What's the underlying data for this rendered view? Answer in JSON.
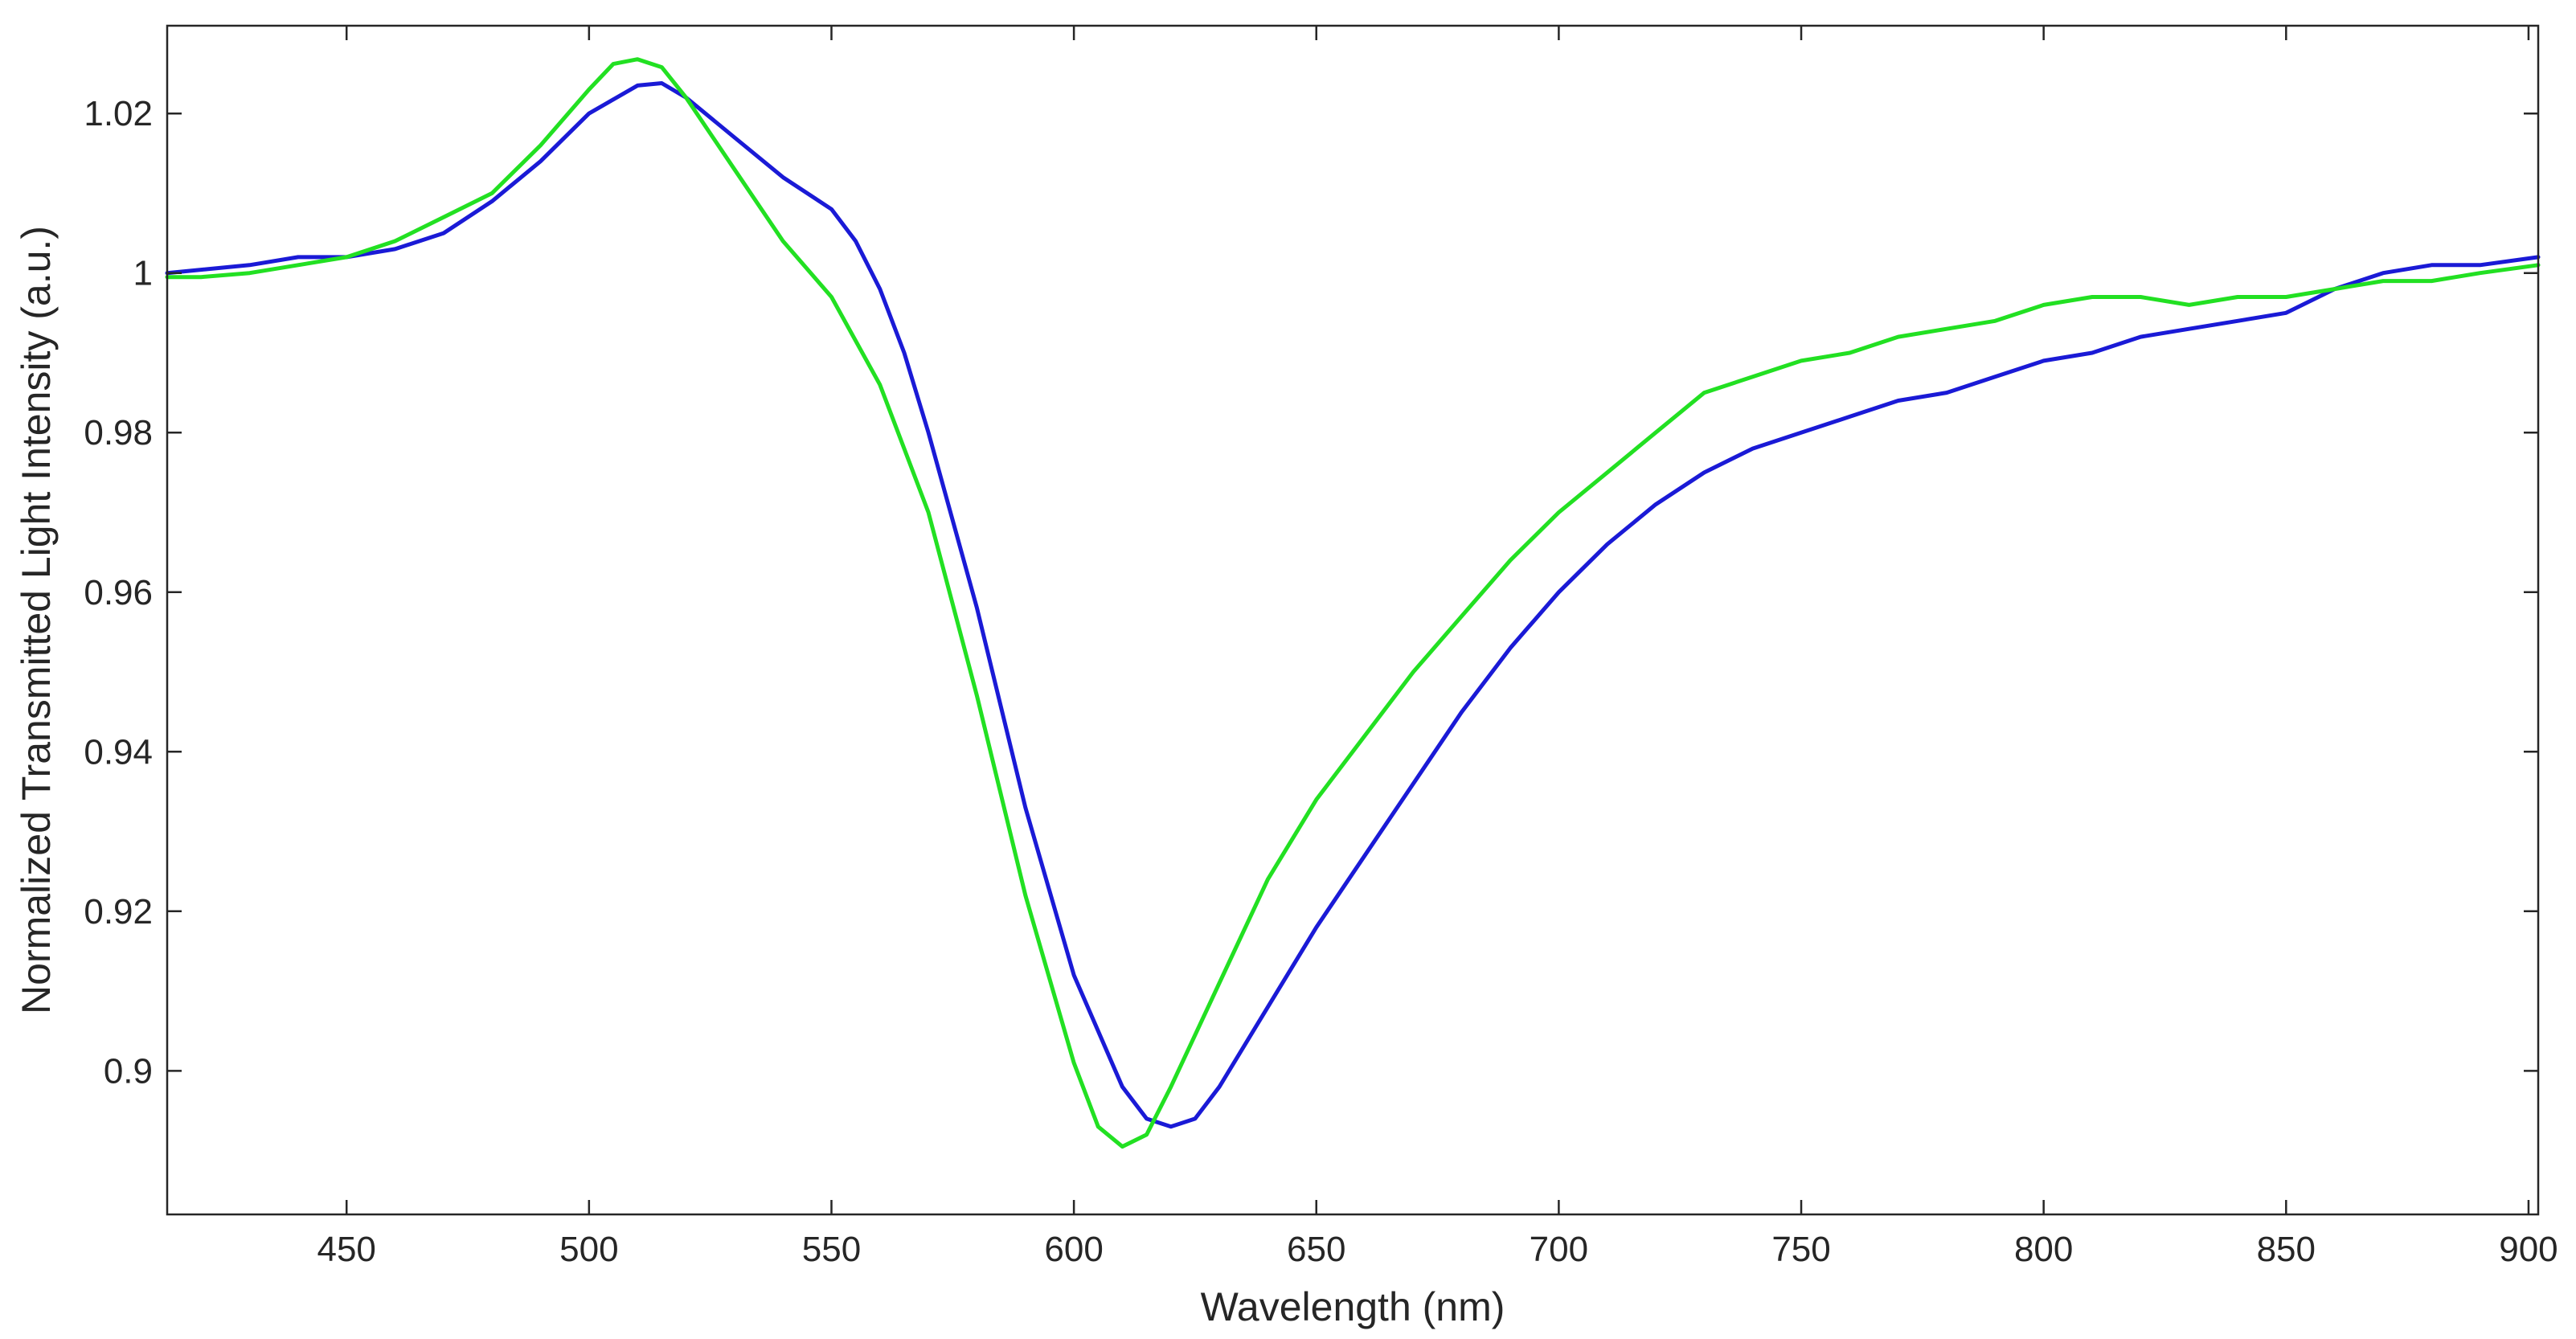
{
  "chart_data": {
    "type": "line",
    "title": "",
    "xlabel": "Wavelength (nm)",
    "ylabel": "Normalized Transmitted Light Intensity (a.u.)",
    "xlim": [
      413,
      902
    ],
    "ylim": [
      0.882,
      1.031
    ],
    "grid": false,
    "legend": "none",
    "x_ticks": [
      450,
      500,
      550,
      600,
      650,
      700,
      750,
      800,
      850,
      900
    ],
    "x_tick_labels": [
      "450",
      "500",
      "550",
      "600",
      "650",
      "700",
      "750",
      "800",
      "850",
      "900"
    ],
    "y_ticks": [
      0.9,
      0.92,
      0.94,
      0.96,
      0.98,
      1.0,
      1.02
    ],
    "y_tick_labels": [
      "0.9",
      "0.92",
      "0.94",
      "0.96",
      "0.98",
      "1",
      "1.02"
    ],
    "series": [
      {
        "color": "#1a1ad6",
        "points": [
          [
            413,
            1.0
          ],
          [
            430,
            1.001
          ],
          [
            440,
            1.002
          ],
          [
            450,
            1.002
          ],
          [
            460,
            1.003
          ],
          [
            470,
            1.005
          ],
          [
            480,
            1.009
          ],
          [
            490,
            1.014
          ],
          [
            500,
            1.02
          ],
          [
            510,
            1.0235
          ],
          [
            515,
            1.0238
          ],
          [
            520,
            1.022
          ],
          [
            530,
            1.017
          ],
          [
            540,
            1.012
          ],
          [
            550,
            1.008
          ],
          [
            555,
            1.004
          ],
          [
            560,
            0.998
          ],
          [
            565,
            0.99
          ],
          [
            570,
            0.98
          ],
          [
            580,
            0.958
          ],
          [
            590,
            0.933
          ],
          [
            600,
            0.912
          ],
          [
            610,
            0.898
          ],
          [
            615,
            0.894
          ],
          [
            620,
            0.893
          ],
          [
            625,
            0.894
          ],
          [
            630,
            0.898
          ],
          [
            640,
            0.908
          ],
          [
            650,
            0.918
          ],
          [
            660,
            0.927
          ],
          [
            670,
            0.936
          ],
          [
            680,
            0.945
          ],
          [
            690,
            0.953
          ],
          [
            700,
            0.96
          ],
          [
            710,
            0.966
          ],
          [
            720,
            0.971
          ],
          [
            730,
            0.975
          ],
          [
            740,
            0.978
          ],
          [
            750,
            0.98
          ],
          [
            760,
            0.982
          ],
          [
            770,
            0.984
          ],
          [
            780,
            0.985
          ],
          [
            790,
            0.987
          ],
          [
            800,
            0.989
          ],
          [
            810,
            0.99
          ],
          [
            820,
            0.992
          ],
          [
            830,
            0.993
          ],
          [
            840,
            0.994
          ],
          [
            850,
            0.995
          ],
          [
            860,
            0.998
          ],
          [
            870,
            1.0
          ],
          [
            880,
            1.001
          ],
          [
            890,
            1.001
          ],
          [
            902,
            1.002
          ]
        ]
      },
      {
        "color": "#22e022",
        "points": [
          [
            413,
            0.9995
          ],
          [
            420,
            0.9995
          ],
          [
            430,
            1.0
          ],
          [
            440,
            1.001
          ],
          [
            450,
            1.002
          ],
          [
            460,
            1.004
          ],
          [
            470,
            1.007
          ],
          [
            480,
            1.01
          ],
          [
            490,
            1.016
          ],
          [
            500,
            1.023
          ],
          [
            505,
            1.0262
          ],
          [
            510,
            1.0268
          ],
          [
            515,
            1.0258
          ],
          [
            520,
            1.022
          ],
          [
            530,
            1.013
          ],
          [
            540,
            1.004
          ],
          [
            550,
            0.997
          ],
          [
            560,
            0.986
          ],
          [
            570,
            0.97
          ],
          [
            580,
            0.947
          ],
          [
            590,
            0.922
          ],
          [
            600,
            0.901
          ],
          [
            605,
            0.893
          ],
          [
            610,
            0.8905
          ],
          [
            615,
            0.892
          ],
          [
            620,
            0.898
          ],
          [
            630,
            0.911
          ],
          [
            640,
            0.924
          ],
          [
            650,
            0.934
          ],
          [
            660,
            0.942
          ],
          [
            670,
            0.95
          ],
          [
            680,
            0.957
          ],
          [
            690,
            0.964
          ],
          [
            700,
            0.97
          ],
          [
            710,
            0.975
          ],
          [
            720,
            0.98
          ],
          [
            730,
            0.985
          ],
          [
            740,
            0.987
          ],
          [
            750,
            0.989
          ],
          [
            760,
            0.99
          ],
          [
            770,
            0.992
          ],
          [
            780,
            0.993
          ],
          [
            790,
            0.994
          ],
          [
            800,
            0.996
          ],
          [
            810,
            0.997
          ],
          [
            820,
            0.997
          ],
          [
            830,
            0.996
          ],
          [
            840,
            0.997
          ],
          [
            850,
            0.997
          ],
          [
            860,
            0.998
          ],
          [
            870,
            0.999
          ],
          [
            880,
            0.999
          ],
          [
            890,
            1.0
          ],
          [
            902,
            1.001
          ]
        ]
      }
    ]
  }
}
